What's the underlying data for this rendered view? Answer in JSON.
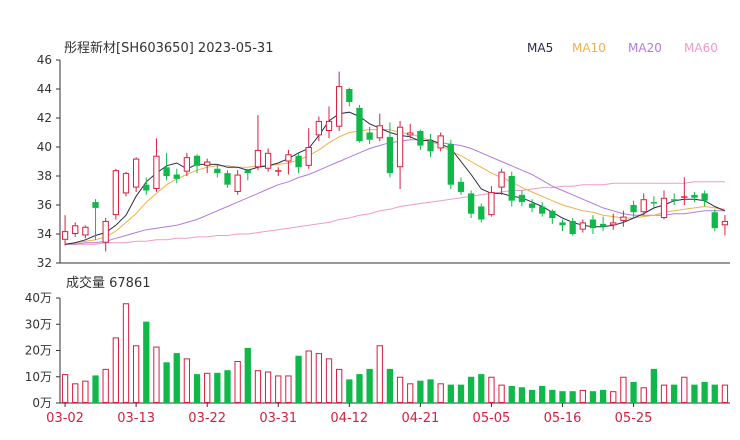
{
  "header": {
    "title": "彤程新材[SH603650] 2023-05-31"
  },
  "legend": [
    {
      "label": "MA5",
      "color": "#2a2a4a"
    },
    {
      "label": "MA10",
      "color": "#f2b14a"
    },
    {
      "label": "MA20",
      "color": "#b07be0"
    },
    {
      "label": "MA60",
      "color": "#f29ac8"
    }
  ],
  "volume_header": {
    "label": "成交量 67861"
  },
  "colors": {
    "up": "#d81e3c",
    "down": "#10b84a",
    "axis": "#333333",
    "date": "#d81e3c"
  },
  "chart_data": [
    {
      "type": "candlestick",
      "title": "彤程新材[SH603650] 2023-05-31",
      "ylim": [
        32,
        46
      ],
      "yticks": [
        "46",
        "44",
        "42",
        "40",
        "38",
        "36",
        "34",
        "32"
      ],
      "ytick_values": [
        46,
        44,
        42,
        40,
        38,
        36,
        34,
        32
      ],
      "x_labels": [
        {
          "i": 0,
          "label": "03-02"
        },
        {
          "i": 7,
          "label": "03-13"
        },
        {
          "i": 14,
          "label": "03-22"
        },
        {
          "i": 21,
          "label": "03-31"
        },
        {
          "i": 28,
          "label": "04-12"
        },
        {
          "i": 35,
          "label": "04-21"
        },
        {
          "i": 42,
          "label": "05-05"
        },
        {
          "i": 49,
          "label": "05-16"
        },
        {
          "i": 56,
          "label": "05-25"
        }
      ],
      "ohlc": [
        [
          33.6,
          34.2,
          33.2,
          35.3
        ],
        [
          34.0,
          34.6,
          33.8,
          34.8
        ],
        [
          33.9,
          34.5,
          33.7,
          34.6
        ],
        [
          36.2,
          35.8,
          33.6,
          36.4
        ],
        [
          33.4,
          34.9,
          32.8,
          35.1
        ],
        [
          35.3,
          38.4,
          35.0,
          38.5
        ],
        [
          36.8,
          38.2,
          36.6,
          38.3
        ],
        [
          37.2,
          39.2,
          36.9,
          39.3
        ],
        [
          37.4,
          37.0,
          36.7,
          37.9
        ],
        [
          37.1,
          39.4,
          36.9,
          40.6
        ],
        [
          38.6,
          38.0,
          37.7,
          39.6
        ],
        [
          38.1,
          37.8,
          37.5,
          38.5
        ],
        [
          38.3,
          39.3,
          38.0,
          39.6
        ],
        [
          39.4,
          38.7,
          38.2,
          39.5
        ],
        [
          38.7,
          39.0,
          38.2,
          39.2
        ],
        [
          38.5,
          38.2,
          37.9,
          38.8
        ],
        [
          38.2,
          37.4,
          37.2,
          38.4
        ],
        [
          36.9,
          38.1,
          36.7,
          38.4
        ],
        [
          38.4,
          38.2,
          37.7,
          38.5
        ],
        [
          38.6,
          39.8,
          38.4,
          42.2
        ],
        [
          38.5,
          39.6,
          38.3,
          39.9
        ],
        [
          38.4,
          38.4,
          38.0,
          38.6
        ],
        [
          39.0,
          39.5,
          38.1,
          39.8
        ],
        [
          39.4,
          38.6,
          38.2,
          39.6
        ],
        [
          38.7,
          40.0,
          38.5,
          41.3
        ],
        [
          40.8,
          41.8,
          40.4,
          42.1
        ],
        [
          41.1,
          41.8,
          40.6,
          42.8
        ],
        [
          41.4,
          44.2,
          41.1,
          45.2
        ],
        [
          44.0,
          43.1,
          42.8,
          44.1
        ],
        [
          42.7,
          40.4,
          40.3,
          42.9
        ],
        [
          41.0,
          40.5,
          40.2,
          41.4
        ],
        [
          40.6,
          41.5,
          40.4,
          42.3
        ],
        [
          40.7,
          38.2,
          37.9,
          41.7
        ],
        [
          38.6,
          41.4,
          37.1,
          41.8
        ],
        [
          40.8,
          41.0,
          40.6,
          41.6
        ],
        [
          41.1,
          40.1,
          39.8,
          41.2
        ],
        [
          40.4,
          39.7,
          39.3,
          40.9
        ],
        [
          39.9,
          40.8,
          39.7,
          41.0
        ],
        [
          40.2,
          37.4,
          37.1,
          40.5
        ],
        [
          37.6,
          36.9,
          36.7,
          37.9
        ],
        [
          36.8,
          35.4,
          35.1,
          37.0
        ],
        [
          35.9,
          35.0,
          34.8,
          36.1
        ],
        [
          35.3,
          36.9,
          35.2,
          37.3
        ],
        [
          37.2,
          38.3,
          36.7,
          38.5
        ],
        [
          38.0,
          36.3,
          35.9,
          38.3
        ],
        [
          36.7,
          36.2,
          35.9,
          37.0
        ],
        [
          36.1,
          35.8,
          35.5,
          36.4
        ],
        [
          35.9,
          35.4,
          35.2,
          36.2
        ],
        [
          35.6,
          35.1,
          34.7,
          35.7
        ],
        [
          34.8,
          34.6,
          34.2,
          35.0
        ],
        [
          34.9,
          34.0,
          33.9,
          35.1
        ],
        [
          34.3,
          34.8,
          34.1,
          35.0
        ],
        [
          35.0,
          34.4,
          34.0,
          35.3
        ],
        [
          34.7,
          34.5,
          34.2,
          35.2
        ],
        [
          34.6,
          34.8,
          34.3,
          35.4
        ],
        [
          34.9,
          35.2,
          34.5,
          35.6
        ],
        [
          36.0,
          35.5,
          35.1,
          36.3
        ],
        [
          35.5,
          36.4,
          35.3,
          36.8
        ],
        [
          36.2,
          36.1,
          35.7,
          36.6
        ],
        [
          35.1,
          36.5,
          35.0,
          37.0
        ],
        [
          36.4,
          36.3,
          36.0,
          36.8
        ],
        [
          36.6,
          36.6,
          36.0,
          37.9
        ],
        [
          36.7,
          36.5,
          36.2,
          36.9
        ],
        [
          36.8,
          36.3,
          35.9,
          37.0
        ],
        [
          35.5,
          34.4,
          34.2,
          35.7
        ],
        [
          34.6,
          34.9,
          33.9,
          35.3
        ]
      ],
      "ma5": [
        33.3,
        33.4,
        33.6,
        33.9,
        34.1,
        34.6,
        35.3,
        36.6,
        37.6,
        38.2,
        38.7,
        38.9,
        38.5,
        38.8,
        38.8,
        38.8,
        38.6,
        38.6,
        38.4,
        38.6,
        38.7,
        38.9,
        39.2,
        39.6,
        39.9,
        40.8,
        41.8,
        42.3,
        42.4,
        42.1,
        41.6,
        41.3,
        41.0,
        40.8,
        40.7,
        40.4,
        40.5,
        40.2,
        39.9,
        39.0,
        38.1,
        37.1,
        36.8,
        36.8,
        36.6,
        36.5,
        36.2,
        35.9,
        35.5,
        35.1,
        34.8,
        34.6,
        34.5,
        34.5,
        34.6,
        34.8,
        35.1,
        35.4,
        35.8,
        36.0,
        36.3,
        36.4,
        36.4,
        36.3,
        35.9,
        35.6
      ],
      "ma10": [
        33.3,
        33.4,
        33.5,
        33.6,
        33.8,
        34.2,
        34.8,
        35.4,
        36.2,
        36.8,
        37.4,
        37.8,
        38.1,
        38.4,
        38.6,
        38.7,
        38.7,
        38.6,
        38.6,
        38.7,
        38.7,
        38.8,
        38.9,
        39.1,
        39.4,
        39.8,
        40.3,
        40.7,
        41.0,
        41.1,
        41.2,
        41.2,
        41.2,
        41.0,
        40.9,
        40.7,
        40.4,
        40.1,
        39.7,
        39.4,
        39.0,
        38.6,
        38.2,
        37.9,
        37.6,
        37.2,
        36.9,
        36.6,
        36.3,
        36.0,
        35.8,
        35.6,
        35.5,
        35.3,
        35.2,
        35.1,
        35.1,
        35.2,
        35.3,
        35.5,
        35.6,
        35.7,
        35.8,
        35.9,
        35.8,
        35.7
      ],
      "ma20": [
        33.3,
        33.3,
        33.4,
        33.4,
        33.5,
        33.7,
        33.9,
        34.1,
        34.3,
        34.4,
        34.5,
        34.6,
        34.8,
        35.0,
        35.3,
        35.6,
        35.9,
        36.2,
        36.5,
        36.8,
        37.1,
        37.4,
        37.6,
        37.9,
        38.1,
        38.4,
        38.7,
        39.0,
        39.3,
        39.6,
        39.9,
        40.1,
        40.3,
        40.4,
        40.5,
        40.5,
        40.4,
        40.3,
        40.2,
        40.1,
        39.9,
        39.6,
        39.3,
        39.0,
        38.7,
        38.4,
        38.1,
        37.7,
        37.3,
        37.0,
        36.7,
        36.4,
        36.1,
        35.8,
        35.6,
        35.4,
        35.3,
        35.3,
        35.3,
        35.3,
        35.4,
        35.4,
        35.5,
        35.6,
        35.6,
        35.6
      ],
      "ma60": [
        33.3,
        33.3,
        33.3,
        33.3,
        33.4,
        33.4,
        33.4,
        33.5,
        33.5,
        33.6,
        33.6,
        33.7,
        33.7,
        33.8,
        33.8,
        33.9,
        33.9,
        34.0,
        34.0,
        34.1,
        34.2,
        34.3,
        34.4,
        34.5,
        34.6,
        34.7,
        34.8,
        35.0,
        35.1,
        35.3,
        35.4,
        35.6,
        35.7,
        35.9,
        36.0,
        36.1,
        36.2,
        36.3,
        36.4,
        36.5,
        36.6,
        36.7,
        36.8,
        36.9,
        37.0,
        37.0,
        37.1,
        37.2,
        37.2,
        37.3,
        37.3,
        37.4,
        37.4,
        37.4,
        37.5,
        37.5,
        37.5,
        37.5,
        37.5,
        37.5,
        37.5,
        37.5,
        37.6,
        37.6,
        37.6,
        37.6
      ]
    },
    {
      "type": "bar",
      "ylabel": "",
      "ylim": [
        0,
        40
      ],
      "yticks": [
        "40万",
        "30万",
        "20万",
        "10万",
        "0万"
      ],
      "ytick_values": [
        40,
        30,
        20,
        10,
        0
      ],
      "values": [
        11,
        7.5,
        8.5,
        10.5,
        13,
        25,
        38,
        22,
        31,
        21.5,
        15.5,
        19,
        17,
        11,
        11.5,
        11.5,
        12.5,
        16,
        21,
        12.5,
        12,
        10.5,
        10.5,
        18,
        20,
        19,
        17,
        13,
        9,
        11,
        13,
        22,
        13,
        10,
        7.5,
        8.5,
        9,
        7.5,
        7,
        7,
        10,
        11,
        10,
        7,
        6.5,
        6,
        5,
        6.5,
        5,
        4.5,
        4.5,
        5,
        4.5,
        5,
        4.5,
        10,
        8,
        6,
        13,
        7,
        7,
        10,
        7,
        8,
        7,
        7
      ]
    }
  ]
}
